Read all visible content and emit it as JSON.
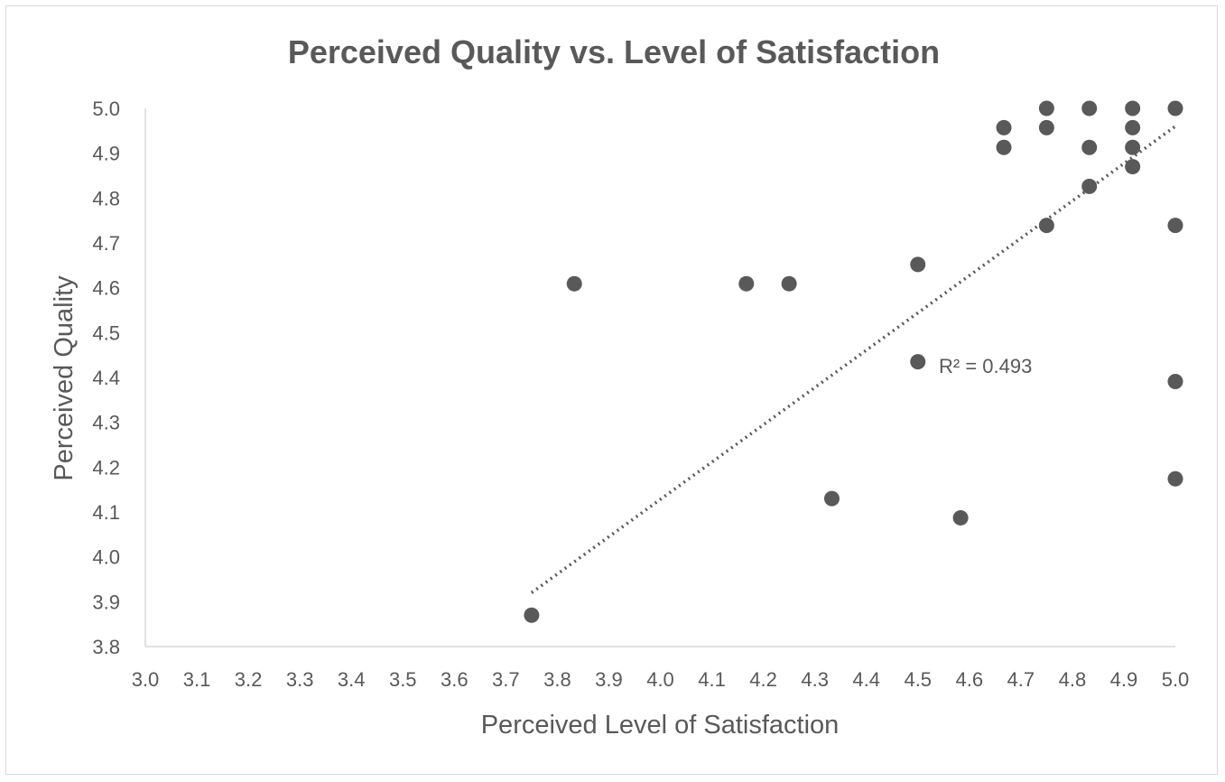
{
  "chart_data": {
    "type": "scatter",
    "title": "Perceived Quality vs. Level of Satisfaction",
    "xlabel": "Perceived Level of Satisfaction",
    "ylabel": "Perceived Quality",
    "xlim": [
      3.0,
      5.0
    ],
    "ylim": [
      3.8,
      5.0
    ],
    "x_ticks": [
      "3.0",
      "3.1",
      "3.2",
      "3.3",
      "3.4",
      "3.5",
      "3.6",
      "3.7",
      "3.8",
      "3.9",
      "4.0",
      "4.1",
      "4.2",
      "4.3",
      "4.4",
      "4.5",
      "4.6",
      "4.7",
      "4.8",
      "4.9",
      "5.0"
    ],
    "y_ticks": [
      "3.8",
      "3.9",
      "4.0",
      "4.1",
      "4.2",
      "4.3",
      "4.4",
      "4.5",
      "4.6",
      "4.7",
      "4.8",
      "4.9",
      "5.0"
    ],
    "grid": false,
    "legend": "none",
    "marker_color": "#595959",
    "points": [
      {
        "x": 3.75,
        "y": 3.87
      },
      {
        "x": 3.833,
        "y": 4.609
      },
      {
        "x": 4.167,
        "y": 4.609
      },
      {
        "x": 4.25,
        "y": 4.609
      },
      {
        "x": 4.333,
        "y": 4.13
      },
      {
        "x": 4.5,
        "y": 4.652
      },
      {
        "x": 4.5,
        "y": 4.435
      },
      {
        "x": 4.583,
        "y": 4.087
      },
      {
        "x": 4.667,
        "y": 4.957
      },
      {
        "x": 4.667,
        "y": 4.913
      },
      {
        "x": 4.75,
        "y": 5.0
      },
      {
        "x": 4.75,
        "y": 4.957
      },
      {
        "x": 4.75,
        "y": 4.739
      },
      {
        "x": 4.833,
        "y": 5.0
      },
      {
        "x": 4.833,
        "y": 4.913
      },
      {
        "x": 4.833,
        "y": 4.826
      },
      {
        "x": 4.917,
        "y": 5.0
      },
      {
        "x": 4.917,
        "y": 4.957
      },
      {
        "x": 4.917,
        "y": 4.913
      },
      {
        "x": 4.917,
        "y": 4.87
      },
      {
        "x": 5.0,
        "y": 5.0
      },
      {
        "x": 5.0,
        "y": 4.739
      },
      {
        "x": 5.0,
        "y": 4.391
      },
      {
        "x": 5.0,
        "y": 4.174
      }
    ],
    "trendline": {
      "type": "linear",
      "style": "dotted",
      "color": "#595959",
      "x": [
        3.75,
        5.0
      ],
      "y": [
        3.92,
        4.96
      ],
      "r_squared_label": "R² = 0.493"
    }
  }
}
